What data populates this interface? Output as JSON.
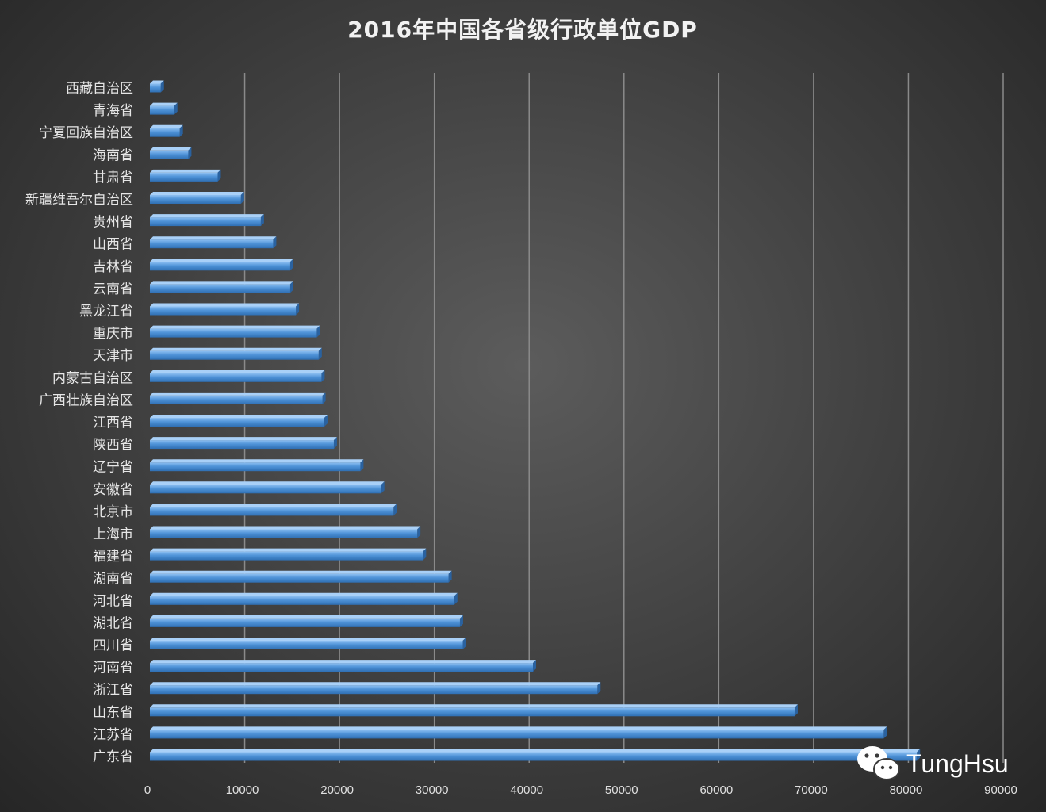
{
  "chart_data": {
    "type": "bar",
    "orientation": "horizontal",
    "title": "2016年中国各省级行政单位GDP",
    "xlim": [
      0,
      90000
    ],
    "xticks": [
      0,
      10000,
      20000,
      30000,
      40000,
      50000,
      60000,
      70000,
      80000,
      90000
    ],
    "grid": "vertical",
    "bar_color": "#4a8fd6",
    "categories": [
      "西藏自治区",
      "青海省",
      "宁夏回族自治区",
      "海南省",
      "甘肃省",
      "新疆维吾尔自治区",
      "贵州省",
      "山西省",
      "吉林省",
      "云南省",
      "黑龙江省",
      "重庆市",
      "天津市",
      "内蒙古自治区",
      "广西壮族自治区",
      "江西省",
      "陕西省",
      "辽宁省",
      "安徽省",
      "北京市",
      "上海市",
      "福建省",
      "湖南省",
      "河北省",
      "湖北省",
      "四川省",
      "河南省",
      "浙江省",
      "山东省",
      "江苏省",
      "广东省"
    ],
    "values": [
      1150,
      2570,
      3150,
      4050,
      7150,
      9600,
      11700,
      13000,
      14800,
      14800,
      15400,
      17600,
      17800,
      18100,
      18200,
      18400,
      19400,
      22200,
      24400,
      25700,
      28200,
      28800,
      31500,
      32100,
      32700,
      33000,
      40400,
      47200,
      68000,
      77400,
      80900
    ]
  },
  "watermark": {
    "text": "TungHsu",
    "icon": "wechat-icon"
  }
}
